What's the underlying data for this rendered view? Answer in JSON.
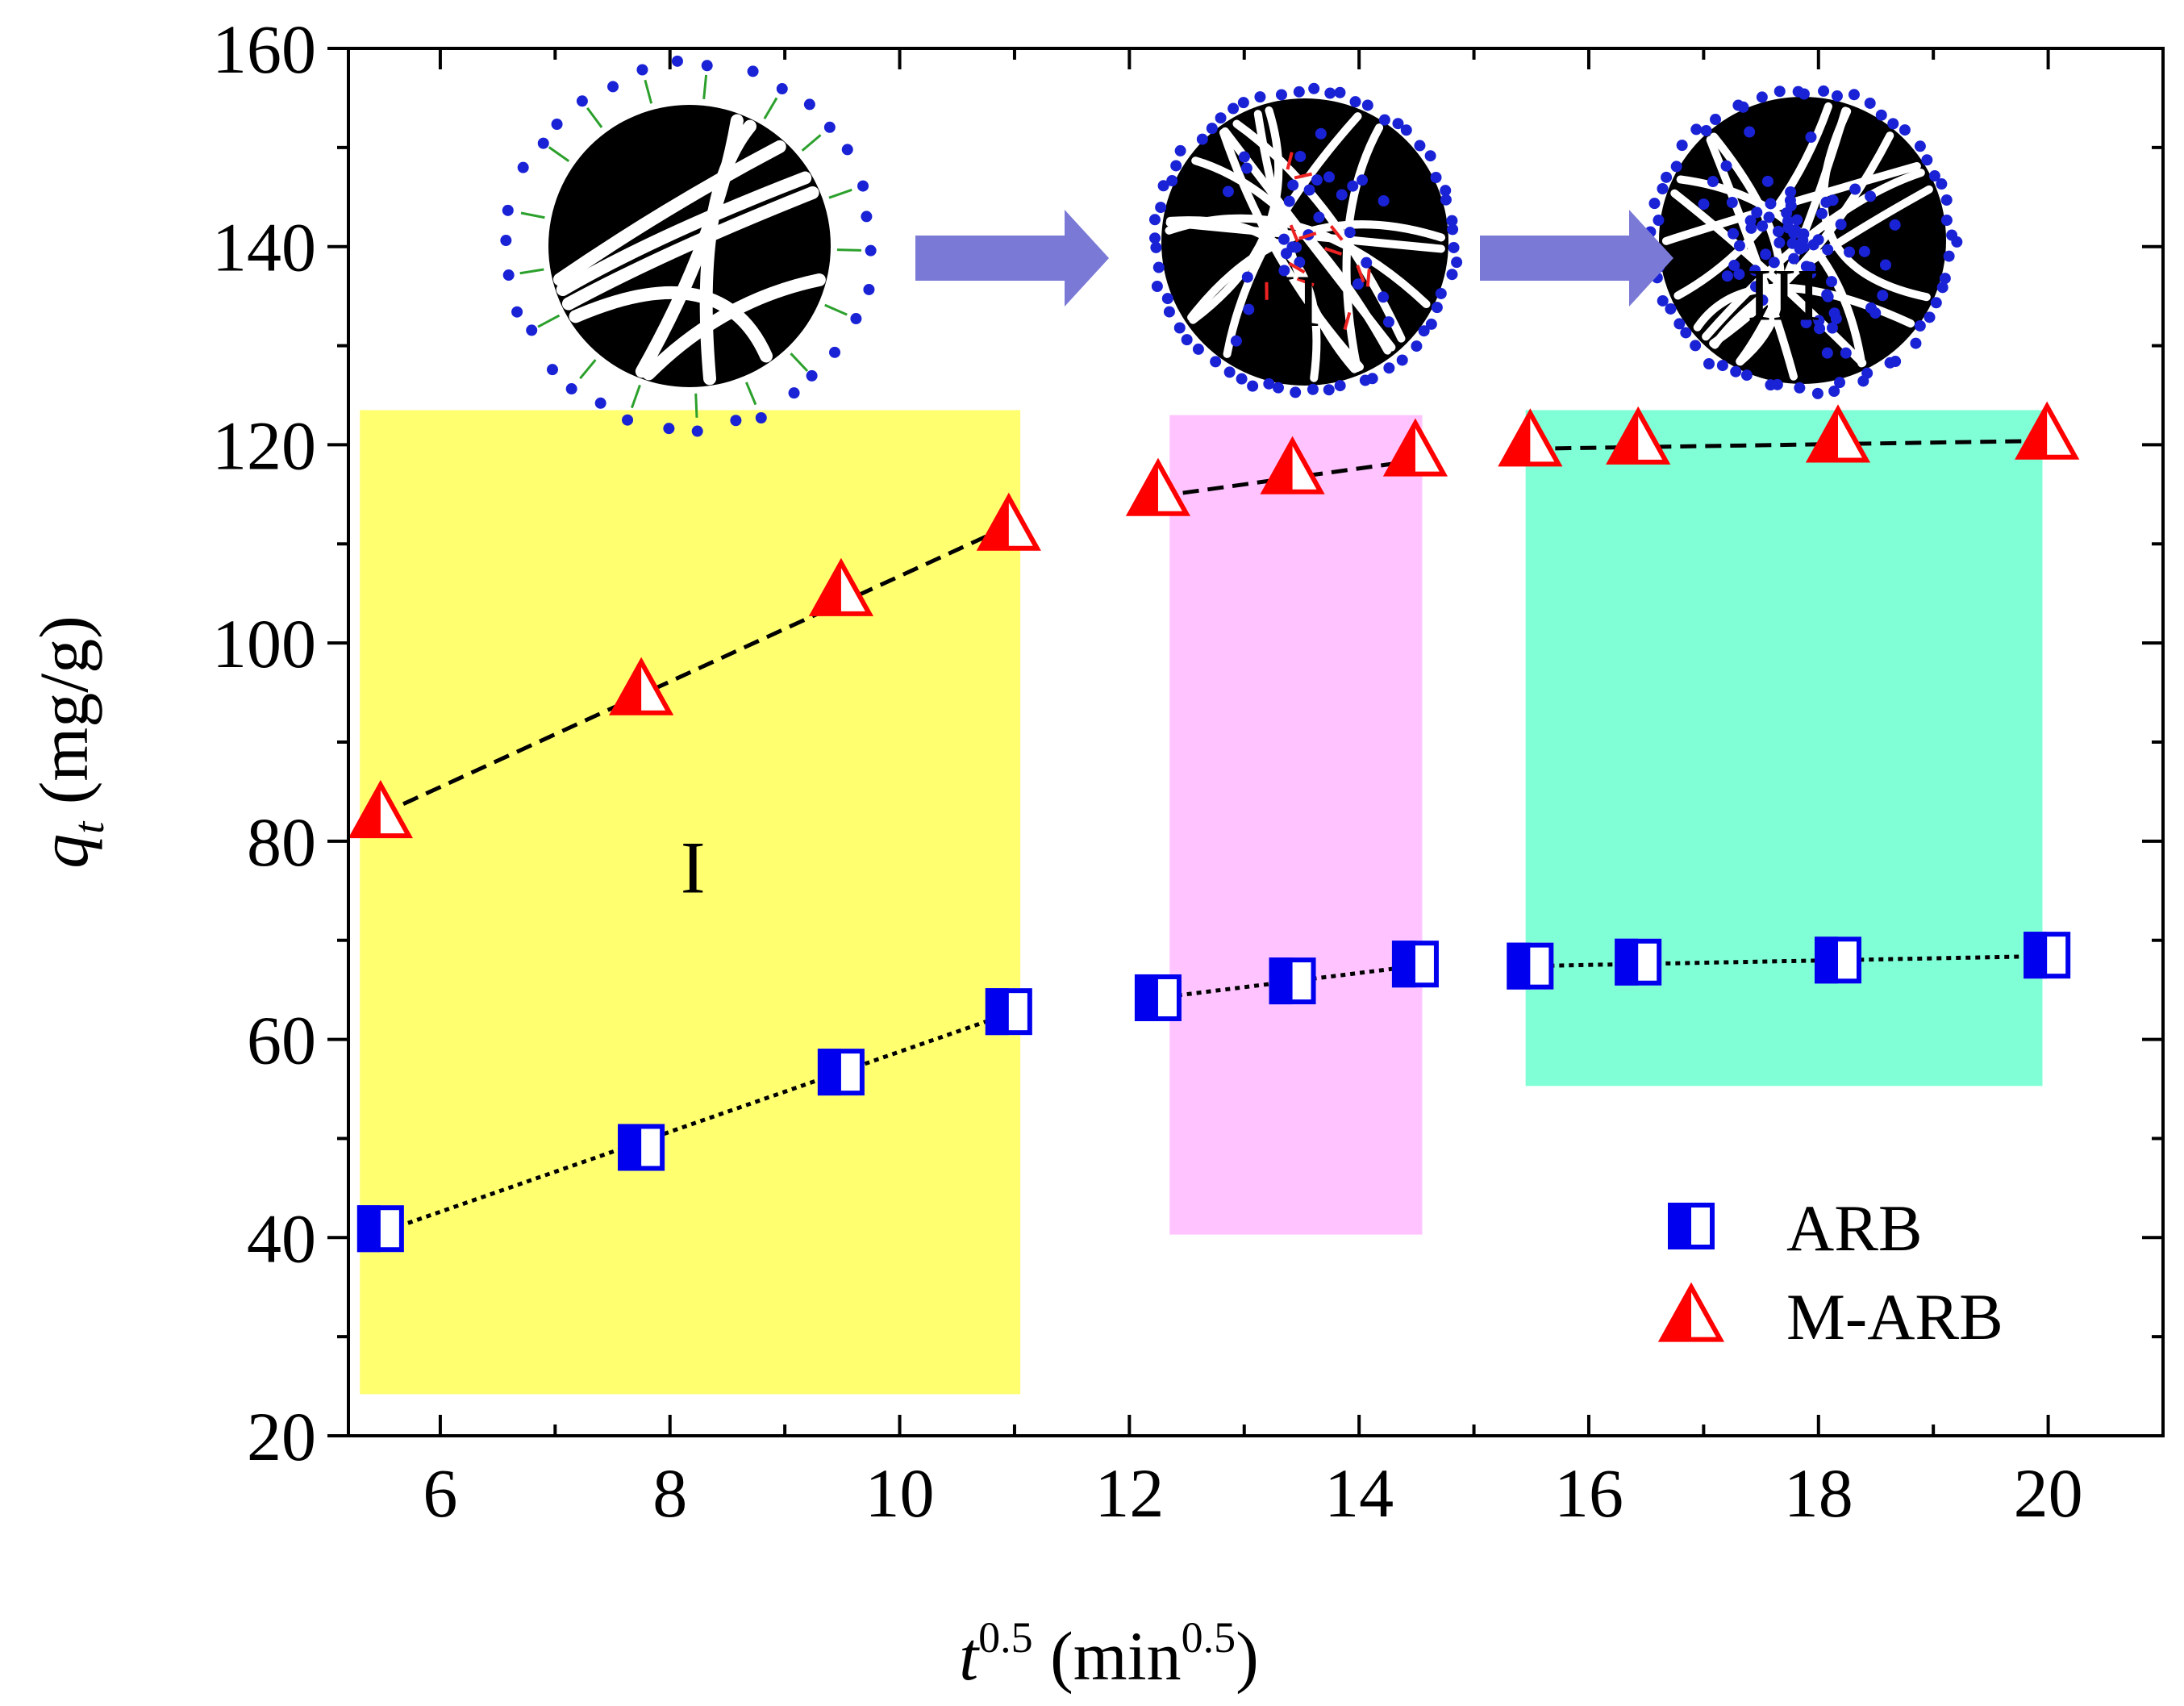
{
  "chart_data": {
    "type": "scatter",
    "title": "",
    "xlabel": {
      "base": "t",
      "sup": "0.5",
      "unit_open": " (min",
      "unit_sup": "0.5",
      "unit_close": ")"
    },
    "ylabel": {
      "sym": "q",
      "sub": "t",
      "unit": " (mg/g)"
    },
    "xlim": [
      5.2,
      21.0
    ],
    "ylim": [
      20,
      160
    ],
    "xticks": [
      6,
      8,
      10,
      12,
      14,
      16,
      18,
      20
    ],
    "yticks": [
      20,
      40,
      60,
      80,
      100,
      120,
      140,
      160
    ],
    "xtick_labels": [
      "6",
      "8",
      "10",
      "12",
      "14",
      "16",
      "18",
      "20"
    ],
    "ytick_labels": [
      "20",
      "40",
      "60",
      "80",
      "100",
      "120",
      "140",
      "160"
    ],
    "series": [
      {
        "name": "ARB",
        "marker": "half-filled-square",
        "color": "#0000ee",
        "x": [
          5.48,
          7.75,
          9.49,
          10.95,
          12.25,
          13.42,
          14.49,
          15.49,
          16.43,
          18.17,
          19.99
        ],
        "y": [
          40.9,
          49.1,
          56.7,
          62.8,
          64.2,
          65.9,
          67.6,
          67.4,
          67.8,
          68.0,
          68.5
        ]
      },
      {
        "name": "M-ARB",
        "marker": "half-filled-triangle",
        "color": "#ff0000",
        "x": [
          5.48,
          7.75,
          9.49,
          10.95,
          12.25,
          13.42,
          14.49,
          15.49,
          16.43,
          18.17,
          19.99
        ],
        "y": [
          82.5,
          94.9,
          104.9,
          111.5,
          115.0,
          117.2,
          119.0,
          120.0,
          120.2,
          120.4,
          120.7
        ]
      }
    ],
    "fit_lines": [
      {
        "series": "ARB",
        "style": "dotted",
        "x": [
          5.48,
          10.95
        ],
        "y": [
          40.5,
          62.6
        ]
      },
      {
        "series": "ARB",
        "style": "dotted",
        "x": [
          12.25,
          14.49
        ],
        "y": [
          64.2,
          67.4
        ]
      },
      {
        "series": "ARB",
        "style": "dotted",
        "x": [
          15.49,
          19.99
        ],
        "y": [
          67.4,
          68.4
        ]
      },
      {
        "series": "M-ARB",
        "style": "dashed",
        "x": [
          5.48,
          10.95
        ],
        "y": [
          82.7,
          111.8
        ]
      },
      {
        "series": "M-ARB",
        "style": "dashed",
        "x": [
          12.25,
          14.49
        ],
        "y": [
          114.8,
          118.4
        ]
      },
      {
        "series": "M-ARB",
        "style": "dashed",
        "x": [
          15.49,
          19.99
        ],
        "y": [
          119.6,
          120.4
        ]
      }
    ],
    "regions": [
      {
        "label": "I",
        "color": "#ffff70",
        "x": [
          5.3,
          11.05
        ],
        "y": [
          24.2,
          123.5
        ],
        "label_at": [
          8.2,
          74.8
        ]
      },
      {
        "label": "II",
        "color": "#ffc4ff",
        "x": [
          12.35,
          14.55
        ],
        "y": [
          40.3,
          123.0
        ],
        "label_at": [
          13.45,
          132.0
        ]
      },
      {
        "label": "III",
        "color": "#80ffd6",
        "x": [
          15.45,
          19.95
        ],
        "y": [
          55.3,
          123.5
        ],
        "label_at": [
          17.7,
          132.6
        ]
      }
    ],
    "legend": {
      "position": "bottom-right",
      "entries": [
        {
          "label": "ARB",
          "marker": "half-filled-square",
          "color": "#0000ee"
        },
        {
          "label": "M-ARB",
          "marker": "half-filled-triangle",
          "color": "#ff0000"
        }
      ]
    },
    "schematic": {
      "description_items": [
        "particle-stage-1",
        "particle-stage-2",
        "particle-stage-3"
      ],
      "arrow_color": "#7a79d6",
      "particle_color": "#000000",
      "dot_color": "#1a22d6"
    }
  }
}
